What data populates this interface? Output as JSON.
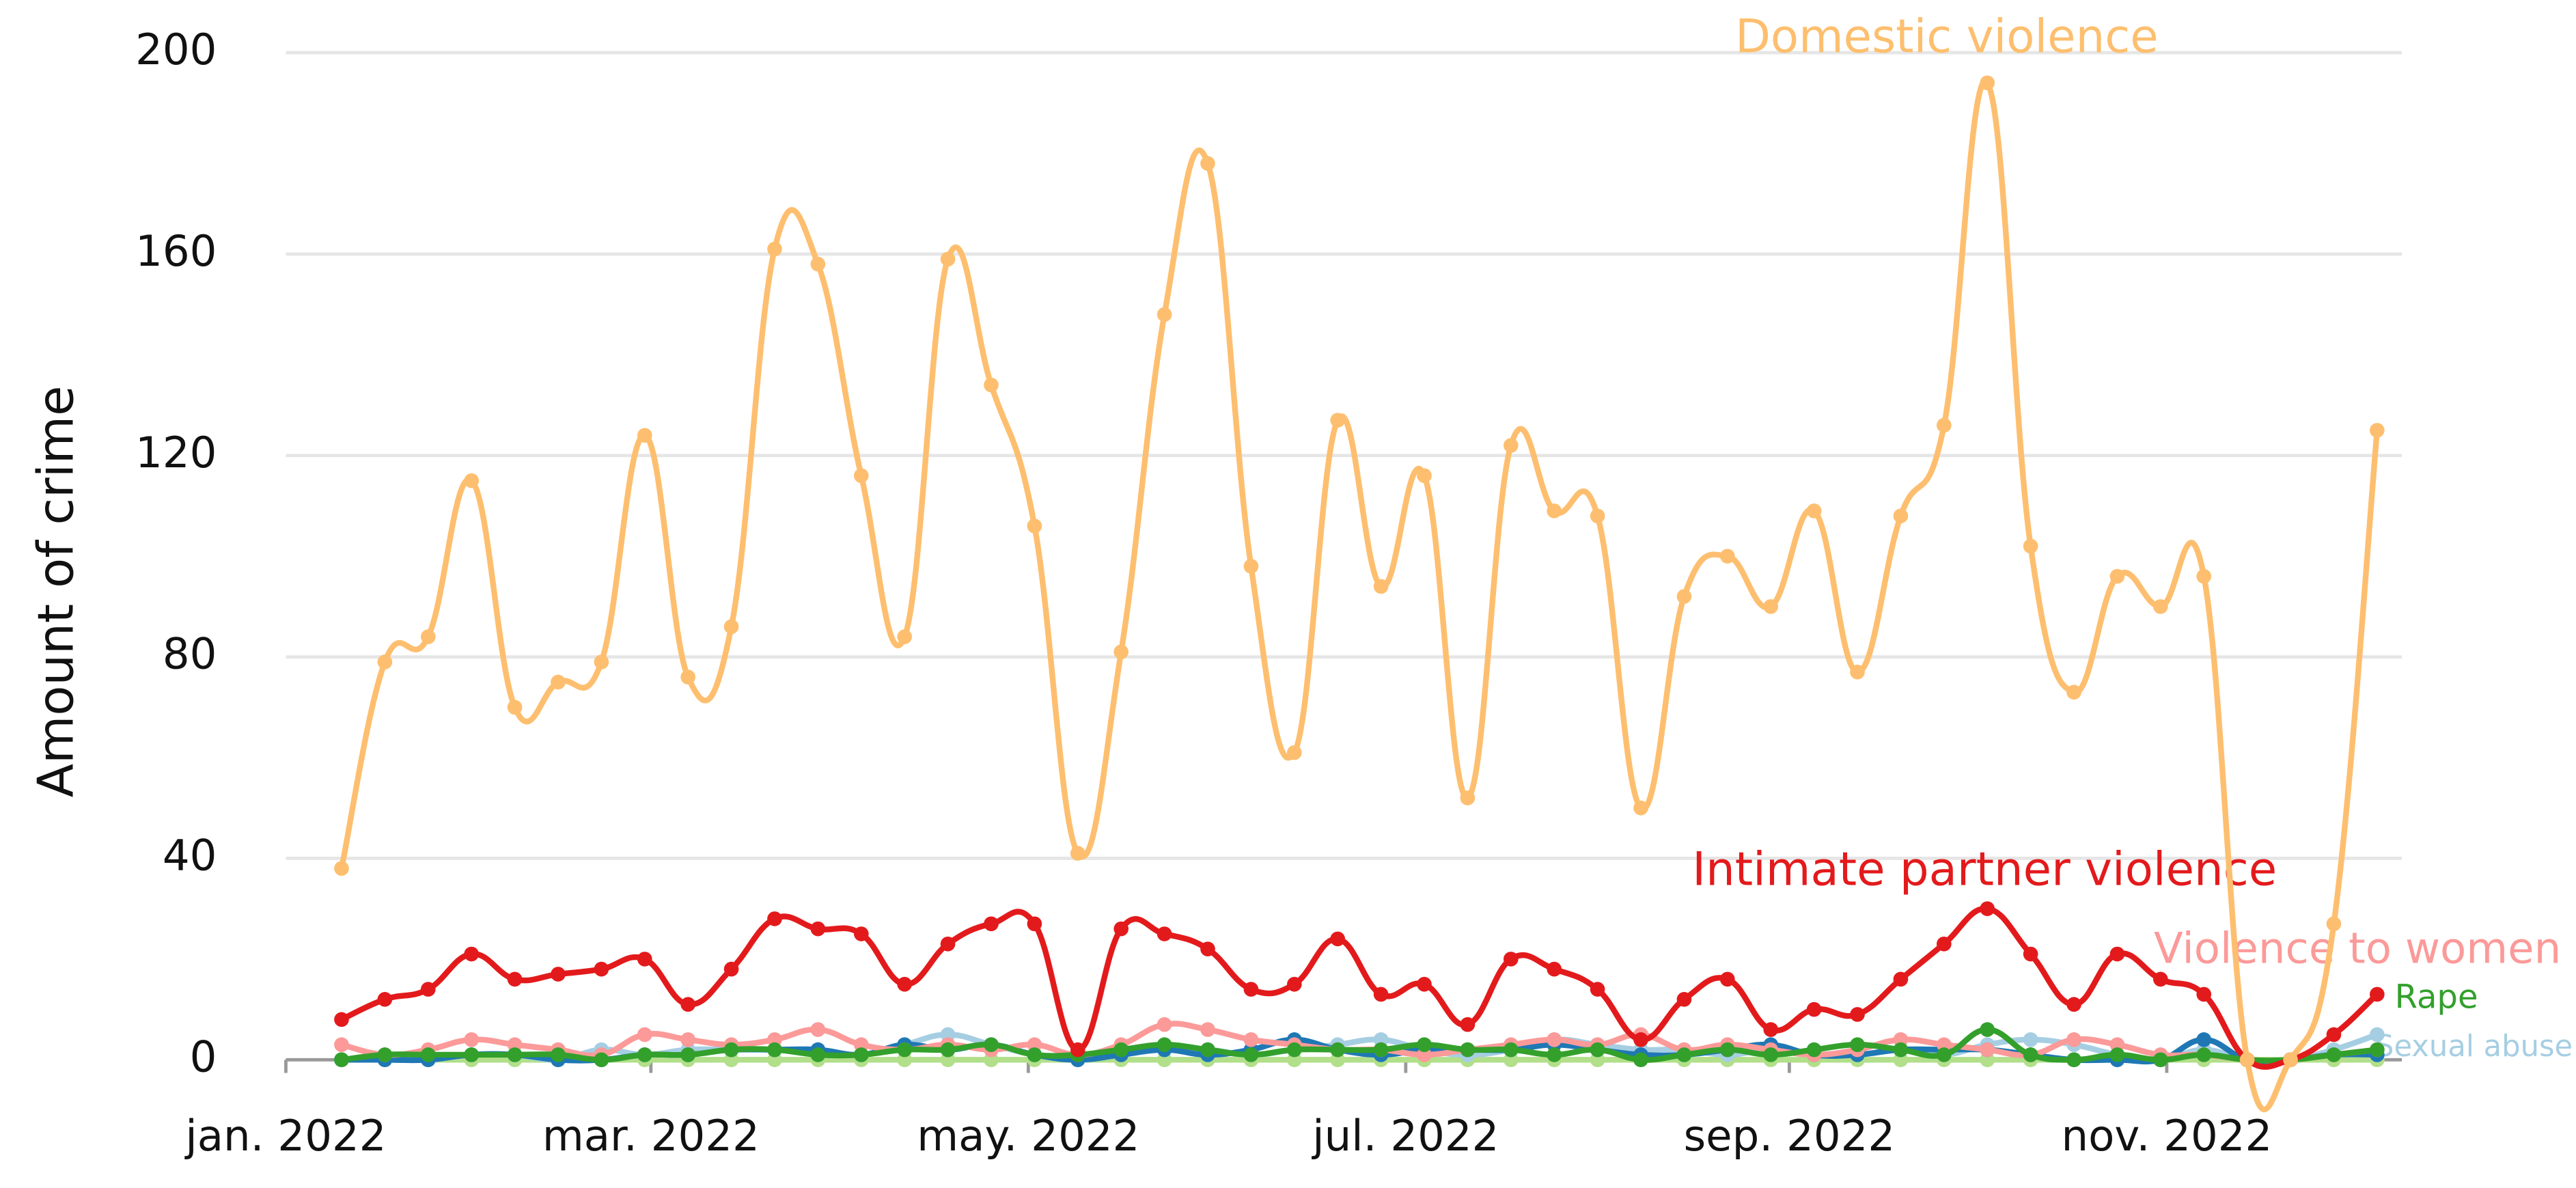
{
  "chart_data": {
    "type": "line",
    "y_label": "Amount of crime",
    "x": [
      "2022-01-10",
      "2022-01-17",
      "2022-01-24",
      "2022-01-31",
      "2022-02-07",
      "2022-02-14",
      "2022-02-21",
      "2022-02-28",
      "2022-03-07",
      "2022-03-14",
      "2022-03-21",
      "2022-03-28",
      "2022-04-04",
      "2022-04-11",
      "2022-04-18",
      "2022-04-25",
      "2022-05-02",
      "2022-05-09",
      "2022-05-16",
      "2022-05-23",
      "2022-05-30",
      "2022-06-06",
      "2022-06-13",
      "2022-06-20",
      "2022-06-27",
      "2022-07-04",
      "2022-07-11",
      "2022-07-18",
      "2022-07-25",
      "2022-08-01",
      "2022-08-08",
      "2022-08-15",
      "2022-08-22",
      "2022-08-29",
      "2022-09-05",
      "2022-09-12",
      "2022-09-19",
      "2022-09-26",
      "2022-10-03",
      "2022-10-10",
      "2022-10-17",
      "2022-10-24",
      "2022-10-31",
      "2022-11-07",
      "2022-11-14",
      "2022-11-21",
      "2022-11-28",
      "2022-12-05"
    ],
    "xlim": [
      "2022-01-01",
      "2022-12-09"
    ],
    "xticks": [
      {
        "value": "2022-01-01",
        "label": "jan. 2022"
      },
      {
        "value": "2022-03-01",
        "label": "mar. 2022"
      },
      {
        "value": "2022-05-01",
        "label": "may. 2022"
      },
      {
        "value": "2022-07-01",
        "label": "jul. 2022"
      },
      {
        "value": "2022-09-01",
        "label": "sep. 2022"
      },
      {
        "value": "2022-11-01",
        "label": "nov. 2022"
      }
    ],
    "ylim": [
      0,
      200
    ],
    "yticks": [
      0,
      40,
      80,
      120,
      160,
      200
    ],
    "grid": true,
    "series": [
      {
        "color": "#b2df8a",
        "values": [
          0,
          0,
          0,
          0,
          0,
          0,
          0,
          0,
          0,
          0,
          0,
          0,
          0,
          0,
          0,
          0,
          0,
          0,
          0,
          0,
          0,
          0,
          0,
          0,
          0,
          0,
          0,
          0,
          0,
          0,
          0,
          0,
          0,
          0,
          0,
          0,
          0,
          0,
          0,
          0,
          0,
          0,
          0,
          0,
          0,
          0,
          0,
          0
        ]
      },
      {
        "name": "Sexual abuse",
        "color": "#a6cee3",
        "values": [
          0,
          0,
          0,
          1,
          1,
          0,
          2,
          1,
          2,
          2,
          2,
          2,
          1,
          3,
          5,
          3,
          1,
          0,
          1,
          2,
          2,
          1,
          2,
          3,
          4,
          2,
          1,
          2,
          4,
          3,
          2,
          2,
          1,
          2,
          1,
          1,
          2,
          1,
          3,
          4,
          3,
          1,
          0,
          2,
          0,
          0,
          2,
          5
        ]
      },
      {
        "color": "#1f78b4",
        "values": [
          0,
          0,
          0,
          1,
          1,
          0,
          0,
          1,
          1,
          2,
          2,
          2,
          1,
          3,
          2,
          3,
          1,
          0,
          1,
          2,
          1,
          2,
          4,
          2,
          1,
          2,
          2,
          2,
          3,
          2,
          1,
          1,
          2,
          3,
          1,
          1,
          2,
          2,
          2,
          1,
          0,
          0,
          0,
          4,
          0,
          0,
          1,
          1
        ]
      },
      {
        "name": "Violence to women",
        "color": "#fb9a99",
        "values": [
          3,
          1,
          2,
          4,
          3,
          2,
          1,
          5,
          4,
          3,
          4,
          6,
          3,
          2,
          3,
          2,
          3,
          1,
          3,
          7,
          6,
          4,
          3,
          2,
          2,
          1,
          2,
          3,
          4,
          3,
          5,
          2,
          3,
          2,
          1,
          2,
          4,
          3,
          2,
          1,
          4,
          3,
          1,
          1,
          0,
          0,
          1,
          2
        ]
      },
      {
        "name": "Rape",
        "color": "#33a02c",
        "values": [
          0,
          1,
          1,
          1,
          1,
          1,
          0,
          1,
          1,
          2,
          2,
          1,
          1,
          2,
          2,
          3,
          1,
          1,
          2,
          3,
          2,
          1,
          2,
          2,
          2,
          3,
          2,
          2,
          1,
          2,
          0,
          1,
          2,
          1,
          2,
          3,
          2,
          1,
          6,
          1,
          0,
          1,
          0,
          1,
          0,
          0,
          1,
          2
        ]
      },
      {
        "name": "Intimate partner violence",
        "color": "#e31a1c",
        "values": [
          8,
          12,
          14,
          21,
          16,
          17,
          18,
          20,
          11,
          18,
          28,
          26,
          25,
          15,
          23,
          27,
          27,
          2,
          26,
          25,
          22,
          14,
          15,
          24,
          13,
          15,
          7,
          20,
          18,
          14,
          4,
          12,
          16,
          6,
          10,
          9,
          16,
          23,
          30,
          21,
          11,
          21,
          16,
          13,
          0,
          0,
          5,
          13
        ]
      },
      {
        "name": "Domestic violence",
        "color": "#fdbf6f",
        "values": [
          38,
          79,
          84,
          115,
          70,
          75,
          79,
          124,
          76,
          86,
          161,
          158,
          116,
          84,
          159,
          134,
          106,
          41,
          81,
          148,
          178,
          98,
          61,
          127,
          94,
          116,
          52,
          122,
          109,
          108,
          50,
          92,
          100,
          90,
          109,
          77,
          108,
          126,
          194,
          102,
          73,
          96,
          90,
          96,
          0,
          0,
          27,
          125
        ]
      }
    ]
  }
}
